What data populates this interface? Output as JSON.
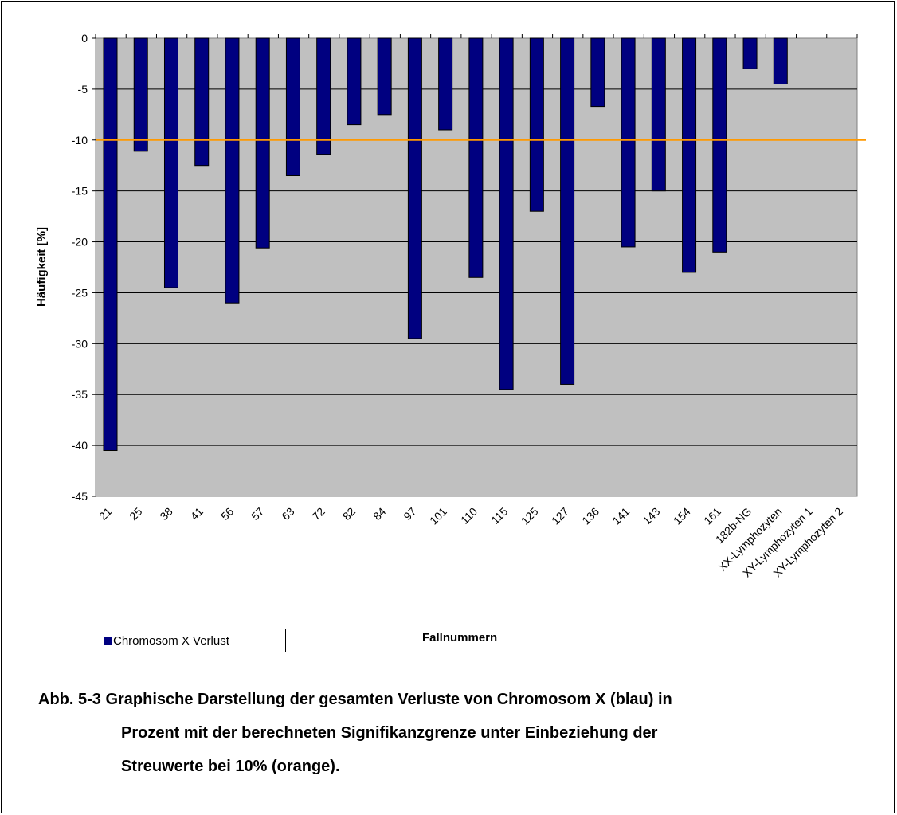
{
  "chart_data": {
    "type": "bar",
    "xlabel": "Fallnummern",
    "ylabel": "Häufigkeit [%]",
    "ylim": [
      -45,
      0
    ],
    "yticks": [
      0,
      -5,
      -10,
      -15,
      -20,
      -25,
      -30,
      -35,
      -40,
      -45
    ],
    "grid": true,
    "legend_position": "bottom-left",
    "categories": [
      "21",
      "25",
      "38",
      "41",
      "56",
      "57",
      "63",
      "72",
      "82",
      "84",
      "97",
      "101",
      "110",
      "115",
      "125",
      "127",
      "136",
      "141",
      "143",
      "154",
      "161",
      "182b-NG",
      "XX-Lymphozyten",
      "XY-Lymphozyten 1",
      "XY-Lymphozyten 2"
    ],
    "series": [
      {
        "name": "Chromosom X Verlust",
        "color": "#000080",
        "values": [
          -40.5,
          -11.1,
          -24.5,
          -12.5,
          -26.0,
          -20.6,
          -13.5,
          -11.4,
          -8.5,
          -7.5,
          -29.5,
          -9.0,
          -23.5,
          -34.5,
          -17.0,
          -34.0,
          -6.7,
          -20.5,
          -15.0,
          -23.0,
          -21.0,
          -3.0,
          -4.5,
          0,
          0
        ]
      }
    ],
    "reference_line": {
      "value": -10,
      "color": "#ff9900"
    },
    "plot_background": "#c0c0c0"
  },
  "caption": {
    "line1": "Abb. 5-3 Graphische Darstellung der gesamten Verluste von Chromosom X (blau) in",
    "line2": "Prozent mit der berechneten Signifikanzgrenze unter Einbeziehung der",
    "line3": "Streuwerte bei 10% (orange)."
  }
}
